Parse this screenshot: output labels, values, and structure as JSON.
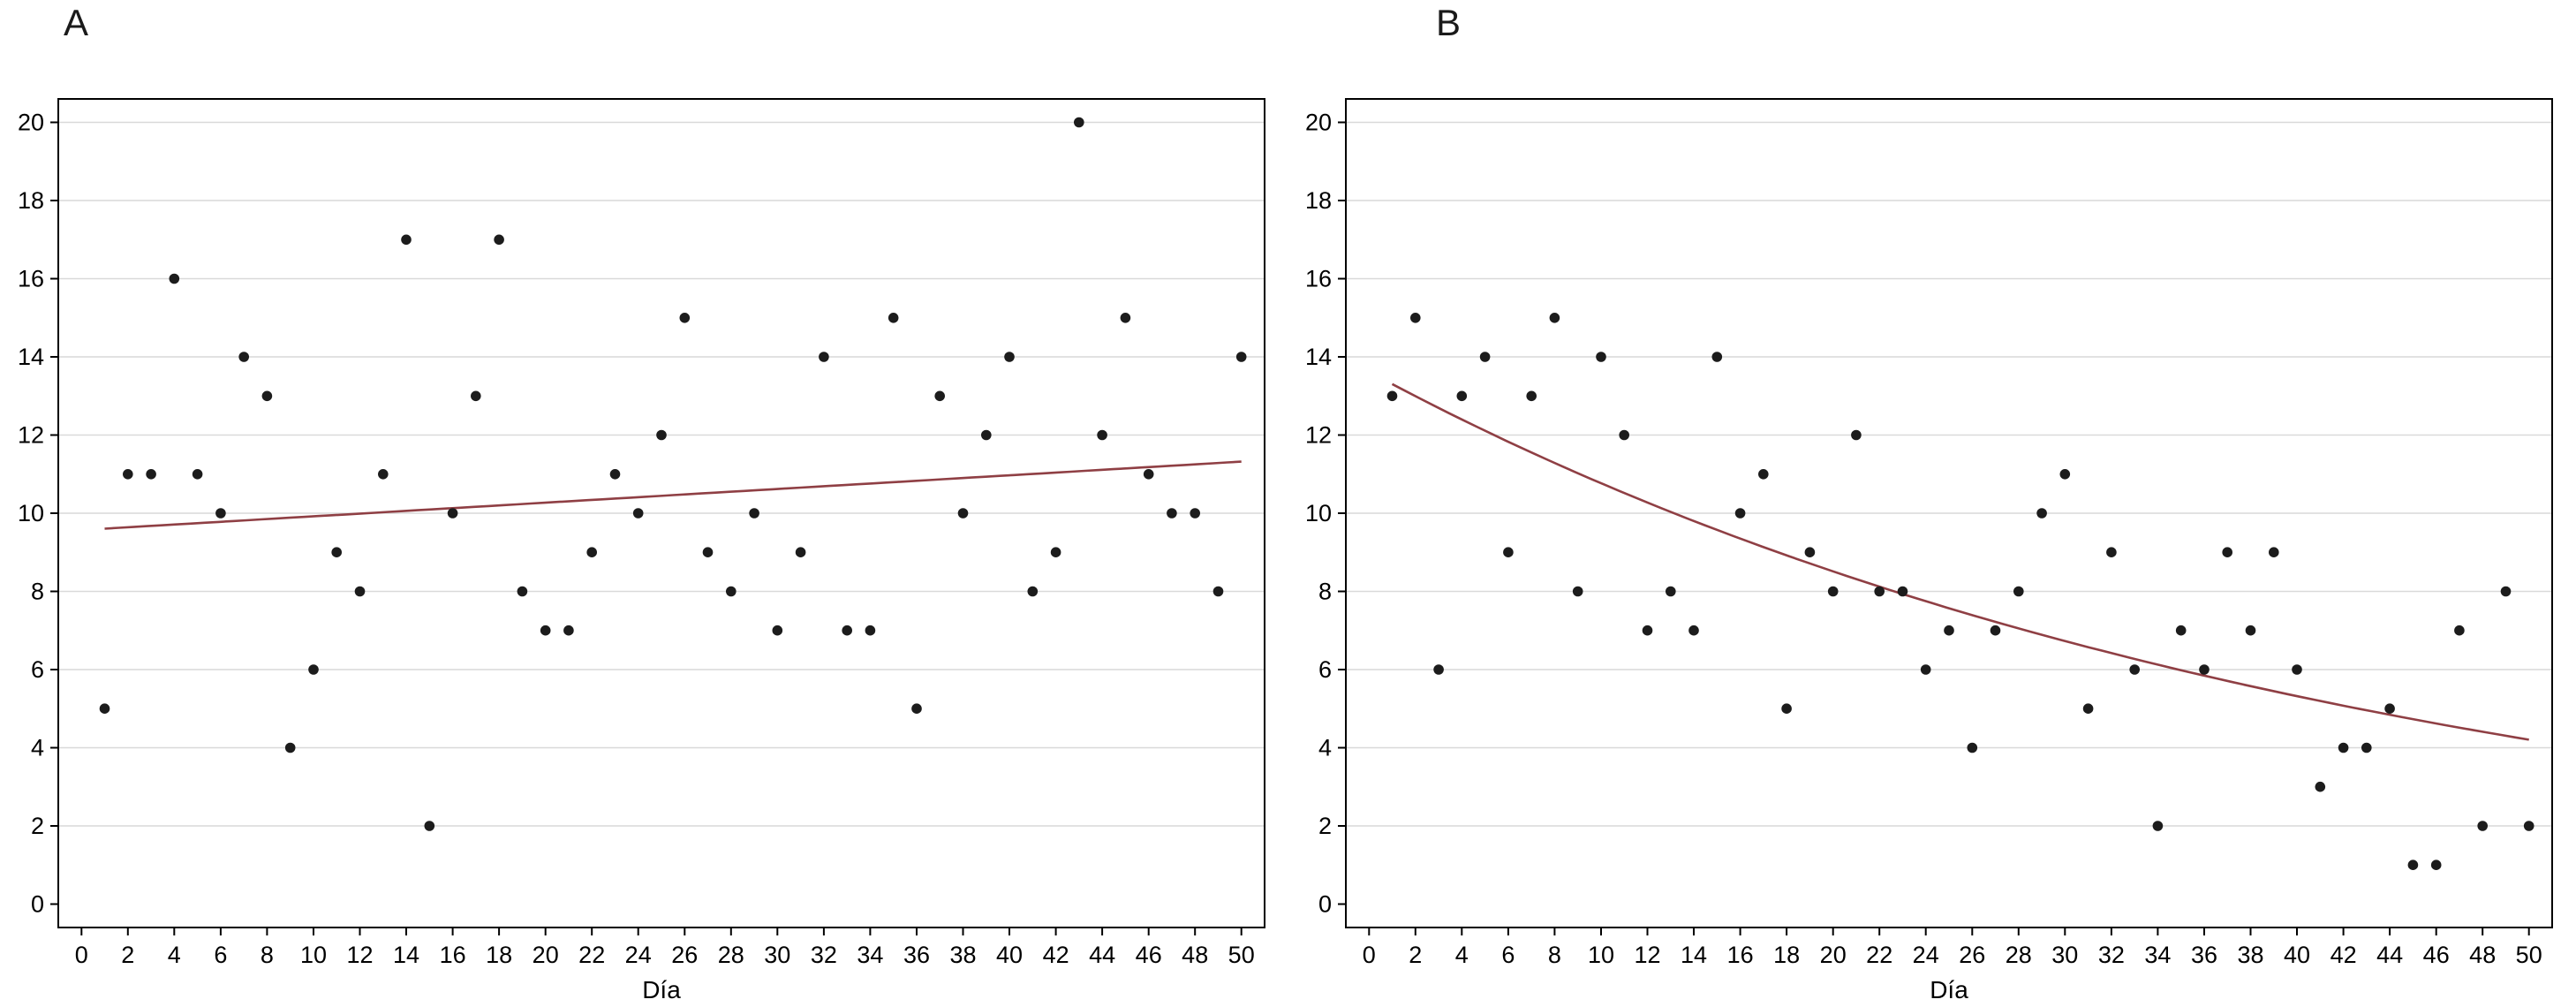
{
  "style": {
    "point_color": "#1c1c1c",
    "trend_color": "#8f3f44",
    "grid_color": "#d9d9d9",
    "axis_color": "#000000",
    "background": "#ffffff"
  },
  "chart_data": [
    {
      "type": "scatter",
      "panel_label": "A",
      "title": "",
      "xlabel": "Día",
      "ylabel": "",
      "xlim": [
        0,
        50
      ],
      "ylim": [
        0,
        20
      ],
      "xticks": [
        0,
        2,
        4,
        6,
        8,
        10,
        12,
        14,
        16,
        18,
        20,
        22,
        24,
        26,
        28,
        30,
        32,
        34,
        36,
        38,
        40,
        42,
        44,
        46,
        48,
        50
      ],
      "yticks": [
        0,
        2,
        4,
        6,
        8,
        10,
        12,
        14,
        16,
        18,
        20
      ],
      "grid": "horizontal",
      "legend": "none",
      "points": [
        [
          1,
          5
        ],
        [
          2,
          11
        ],
        [
          3,
          11
        ],
        [
          4,
          16
        ],
        [
          5,
          11
        ],
        [
          6,
          10
        ],
        [
          7,
          14
        ],
        [
          8,
          13
        ],
        [
          9,
          4
        ],
        [
          10,
          6
        ],
        [
          11,
          9
        ],
        [
          12,
          8
        ],
        [
          13,
          11
        ],
        [
          14,
          17
        ],
        [
          15,
          2
        ],
        [
          16,
          10
        ],
        [
          17,
          13
        ],
        [
          18,
          17
        ],
        [
          19,
          8
        ],
        [
          20,
          7
        ],
        [
          21,
          7
        ],
        [
          22,
          9
        ],
        [
          23,
          11
        ],
        [
          24,
          10
        ],
        [
          25,
          12
        ],
        [
          26,
          15
        ],
        [
          27,
          9
        ],
        [
          28,
          8
        ],
        [
          29,
          10
        ],
        [
          30,
          7
        ],
        [
          31,
          9
        ],
        [
          32,
          14
        ],
        [
          33,
          7
        ],
        [
          34,
          7
        ],
        [
          35,
          15
        ],
        [
          36,
          5
        ],
        [
          37,
          13
        ],
        [
          38,
          10
        ],
        [
          39,
          12
        ],
        [
          40,
          14
        ],
        [
          41,
          8
        ],
        [
          42,
          9
        ],
        [
          43,
          20
        ],
        [
          44,
          12
        ],
        [
          45,
          15
        ],
        [
          46,
          11
        ],
        [
          47,
          10
        ],
        [
          48,
          10
        ],
        [
          49,
          8
        ],
        [
          50,
          14
        ]
      ],
      "trend": {
        "kind": "linear",
        "intercept": 9.57,
        "slope": 0.035,
        "x_start": 1,
        "x_end": 50,
        "y_start": 9.6,
        "y_end": 11.3
      }
    },
    {
      "type": "scatter",
      "panel_label": "B",
      "title": "",
      "xlabel": "Día",
      "ylabel": "",
      "xlim": [
        0,
        50
      ],
      "ylim": [
        0,
        20
      ],
      "xticks": [
        0,
        2,
        4,
        6,
        8,
        10,
        12,
        14,
        16,
        18,
        20,
        22,
        24,
        26,
        28,
        30,
        32,
        34,
        36,
        38,
        40,
        42,
        44,
        46,
        48,
        50
      ],
      "yticks": [
        0,
        2,
        4,
        6,
        8,
        10,
        12,
        14,
        16,
        18,
        20
      ],
      "grid": "horizontal",
      "legend": "none",
      "points": [
        [
          1,
          13
        ],
        [
          2,
          15
        ],
        [
          3,
          6
        ],
        [
          4,
          13
        ],
        [
          5,
          14
        ],
        [
          6,
          9
        ],
        [
          7,
          13
        ],
        [
          8,
          15
        ],
        [
          9,
          8
        ],
        [
          10,
          14
        ],
        [
          11,
          12
        ],
        [
          12,
          7
        ],
        [
          13,
          8
        ],
        [
          14,
          7
        ],
        [
          15,
          14
        ],
        [
          16,
          10
        ],
        [
          17,
          11
        ],
        [
          18,
          5
        ],
        [
          19,
          9
        ],
        [
          20,
          8
        ],
        [
          21,
          12
        ],
        [
          22,
          8
        ],
        [
          23,
          8
        ],
        [
          24,
          6
        ],
        [
          25,
          7
        ],
        [
          26,
          4
        ],
        [
          27,
          7
        ],
        [
          28,
          8
        ],
        [
          29,
          10
        ],
        [
          30,
          11
        ],
        [
          31,
          5
        ],
        [
          32,
          9
        ],
        [
          33,
          6
        ],
        [
          34,
          2
        ],
        [
          35,
          7
        ],
        [
          36,
          6
        ],
        [
          37,
          9
        ],
        [
          38,
          7
        ],
        [
          39,
          9
        ],
        [
          40,
          6
        ],
        [
          41,
          3
        ],
        [
          42,
          4
        ],
        [
          43,
          4
        ],
        [
          44,
          5
        ],
        [
          45,
          1
        ],
        [
          46,
          1
        ],
        [
          47,
          7
        ],
        [
          48,
          2
        ],
        [
          49,
          8
        ],
        [
          50,
          2
        ]
      ],
      "trend": {
        "kind": "exp",
        "a": 13.62,
        "b": -0.0235,
        "x_start": 1,
        "x_end": 50,
        "y_start": 13.3,
        "y_end": 4.2
      }
    }
  ]
}
